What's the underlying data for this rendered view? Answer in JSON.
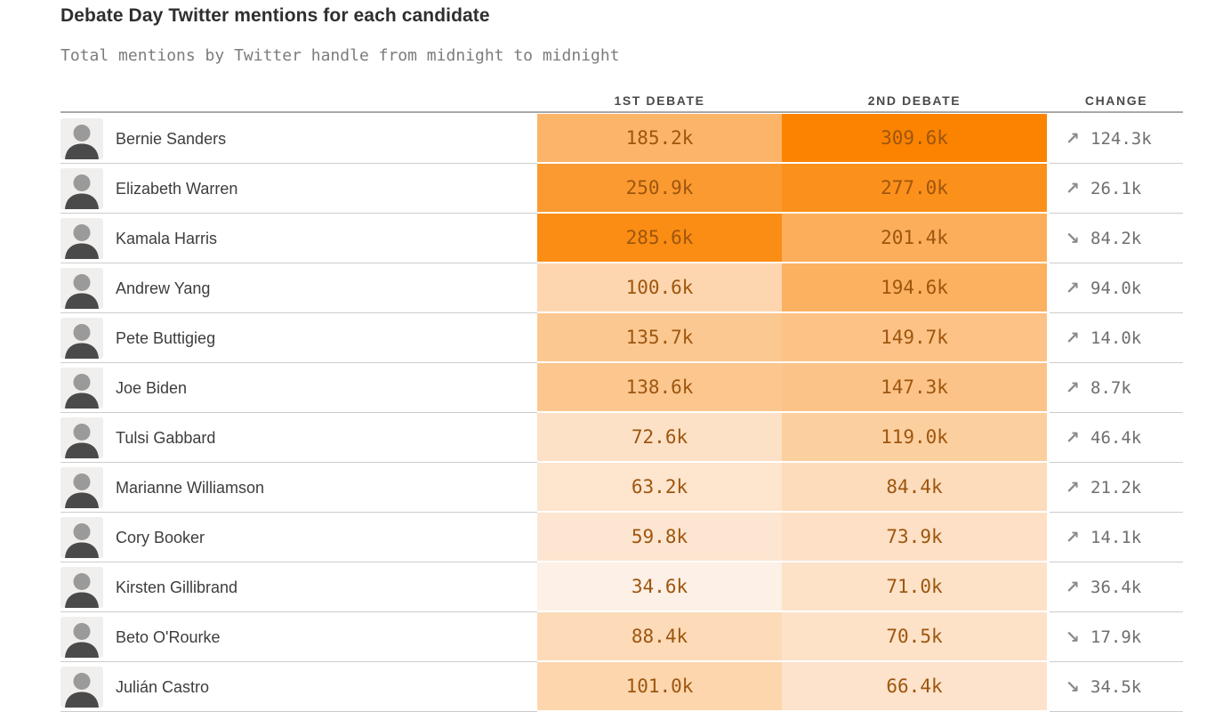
{
  "header": {
    "title": "Debate Day Twitter mentions for each candidate",
    "subtitle": "Total mentions by Twitter handle from midnight to midnight"
  },
  "table": {
    "columns": [
      "1ST DEBATE",
      "2ND DEBATE",
      "CHANGE"
    ]
  },
  "icons": {
    "up": "↗",
    "down": "↘"
  },
  "colors": {
    "heat_text": "#9d560e",
    "change_text": "#6f6f6f",
    "separator": "#cccccc",
    "header_rule": "#a8a8a8",
    "heat_min": "#fdf0e6",
    "heat_max": "#fb8300"
  },
  "chart_data": {
    "type": "heatmap",
    "title": "Debate Day Twitter mentions for each candidate",
    "subtitle": "Total mentions by Twitter handle from midnight to midnight",
    "value_unit": "thousands of Twitter mentions (k)",
    "legend_position": "none",
    "categories": [
      "Bernie Sanders",
      "Elizabeth Warren",
      "Kamala Harris",
      "Andrew Yang",
      "Pete Buttigieg",
      "Joe Biden",
      "Tulsi Gabbard",
      "Marianne Williamson",
      "Cory Booker",
      "Kirsten Gillibrand",
      "Beto O'Rourke",
      "Julián Castro"
    ],
    "series": [
      {
        "name": "1st Debate",
        "values": [
          185.2,
          250.9,
          285.6,
          100.6,
          135.7,
          138.6,
          72.6,
          63.2,
          59.8,
          34.6,
          88.4,
          101.0
        ]
      },
      {
        "name": "2nd Debate",
        "values": [
          309.6,
          277.0,
          201.4,
          194.6,
          149.7,
          147.3,
          119.0,
          84.4,
          73.9,
          71.0,
          70.5,
          66.4
        ]
      }
    ],
    "change": [
      {
        "direction": "up",
        "value": 124.3
      },
      {
        "direction": "up",
        "value": 26.1
      },
      {
        "direction": "down",
        "value": 84.2
      },
      {
        "direction": "up",
        "value": 94.0
      },
      {
        "direction": "up",
        "value": 14.0
      },
      {
        "direction": "up",
        "value": 8.7
      },
      {
        "direction": "up",
        "value": 46.4
      },
      {
        "direction": "up",
        "value": 21.2
      },
      {
        "direction": "up",
        "value": 14.1
      },
      {
        "direction": "up",
        "value": 36.4
      },
      {
        "direction": "down",
        "value": 17.9
      },
      {
        "direction": "down",
        "value": 34.5
      }
    ],
    "heat_scale": {
      "min_color": "#fdf0e6",
      "max_color": "#fb8300",
      "domain": [
        34.6,
        309.6
      ]
    }
  }
}
